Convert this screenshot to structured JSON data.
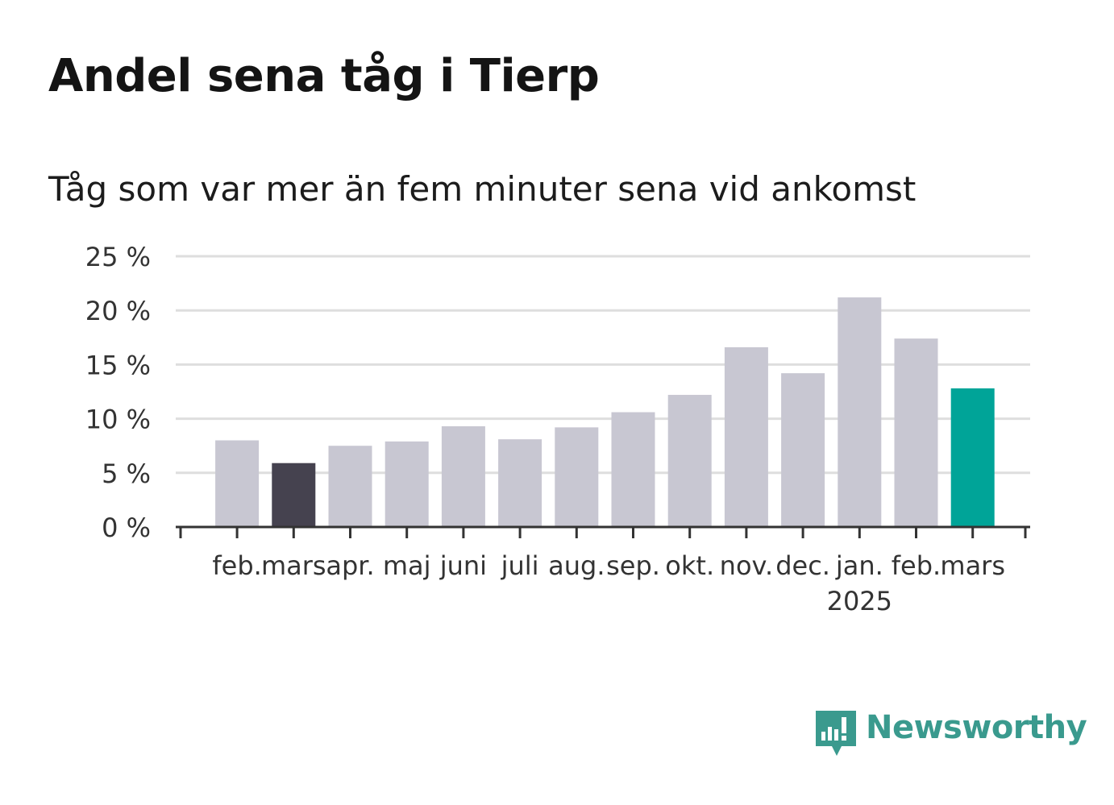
{
  "title": "Andel sena tåg i Tierp",
  "subtitle": "Tåg som var mer än fem minuter sena vid ankomst",
  "brand": {
    "name": "Newsworthy",
    "color": "#3a9a8e"
  },
  "colors": {
    "default_bar": "#c8c7d2",
    "previous_year_bar": "#45424f",
    "current_bar": "#00a498",
    "grid": "#dedede",
    "axis": "#333333"
  },
  "chart_data": {
    "type": "bar",
    "categories": [
      "feb.",
      "mars",
      "apr.",
      "maj",
      "juni",
      "juli",
      "aug.",
      "sep.",
      "okt.",
      "nov.",
      "dec.",
      "jan.",
      "feb.",
      "mars"
    ],
    "year_labels": [
      {
        "index": 11,
        "label": "2025"
      }
    ],
    "values": [
      8.0,
      5.9,
      7.5,
      7.9,
      9.3,
      8.1,
      9.2,
      10.6,
      12.2,
      16.6,
      14.2,
      21.2,
      17.4,
      12.8
    ],
    "highlight": {
      "previous_year_index": 1,
      "current_index": 13
    },
    "y_ticks": [
      0,
      5,
      10,
      15,
      20,
      25
    ],
    "y_tick_labels": [
      "0 %",
      "5 %",
      "10 %",
      "15 %",
      "20 %",
      "25 %"
    ],
    "ylim": [
      0,
      25
    ],
    "grid": true,
    "xlabel": "",
    "ylabel": ""
  }
}
